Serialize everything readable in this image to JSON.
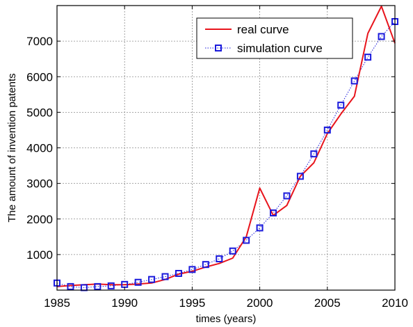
{
  "chart_data": {
    "type": "line",
    "xlabel": "times (years)",
    "ylabel": "The amount of invention patents",
    "xlim": [
      1985,
      2010
    ],
    "ylim": [
      0,
      8000
    ],
    "xticks": [
      1985,
      1990,
      1995,
      2000,
      2005,
      2010
    ],
    "yticks": [
      1000,
      2000,
      3000,
      4000,
      5000,
      6000,
      7000
    ],
    "grid": true,
    "legend_position": "top-right",
    "x": [
      1985,
      1986,
      1987,
      1988,
      1989,
      1990,
      1991,
      1992,
      1993,
      1994,
      1995,
      1996,
      1997,
      1998,
      1999,
      2000,
      2001,
      2002,
      2003,
      2004,
      2005,
      2006,
      2007,
      2008,
      2009,
      2010
    ],
    "series": [
      {
        "name": "real curve",
        "color": "#e8141c",
        "style": "solid",
        "marker": "none",
        "values": [
          100,
          130,
          150,
          170,
          150,
          150,
          170,
          200,
          300,
          450,
          530,
          650,
          750,
          900,
          1500,
          2870,
          2100,
          2380,
          3200,
          3580,
          4400,
          4950,
          5450,
          7220,
          7980,
          6940
        ]
      },
      {
        "name": "simulation curve",
        "color": "#1a1adc",
        "style": "dotted",
        "marker": "square",
        "values": [
          200,
          100,
          70,
          100,
          120,
          160,
          220,
          300,
          380,
          470,
          580,
          720,
          880,
          1100,
          1400,
          1750,
          2170,
          2650,
          3200,
          3830,
          4500,
          5200,
          5880,
          6550,
          7130,
          7550
        ]
      }
    ]
  }
}
